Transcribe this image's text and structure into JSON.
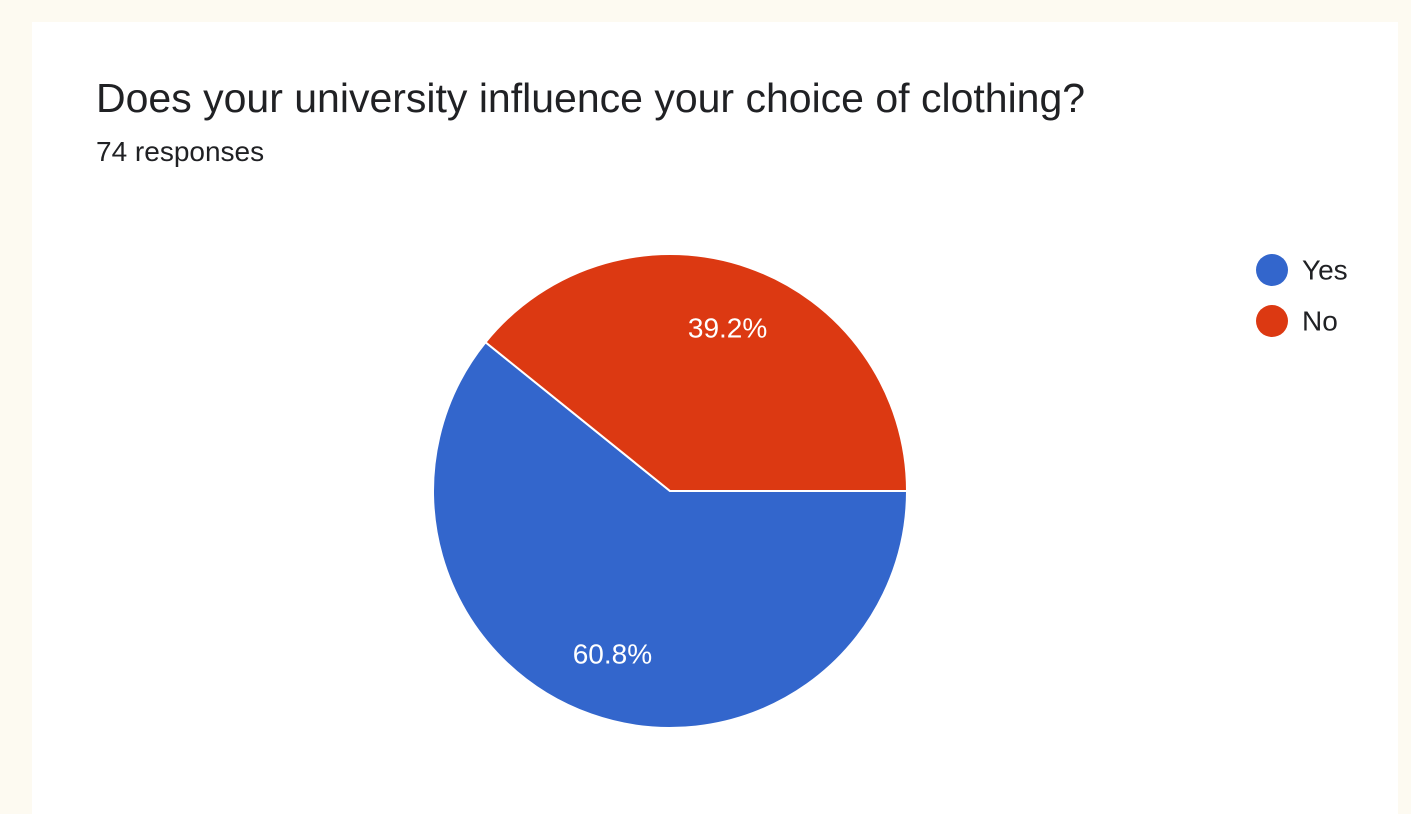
{
  "chart_data": {
    "type": "pie",
    "title": "Does your university influence your choice of clothing?",
    "subtitle": "74 responses",
    "categories": [
      "Yes",
      "No"
    ],
    "values": [
      60.8,
      39.2
    ],
    "labels": [
      "60.8%",
      "39.2%"
    ],
    "colors": [
      "#3366cc",
      "#dc3912"
    ],
    "legend_position": "top-right"
  }
}
